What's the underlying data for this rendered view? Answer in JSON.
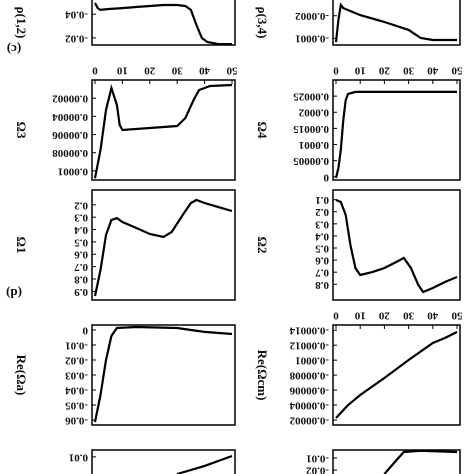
{
  "chart_data": [
    {
      "type": "line",
      "panel_label": "(c)",
      "y_label": "ρ(1,2)",
      "x": [
        0,
        1,
        2,
        5,
        10,
        15,
        20,
        25,
        30,
        33,
        35,
        37,
        39,
        41,
        45,
        50
      ],
      "values": [
        -0.0495,
        -0.0452,
        -0.0436,
        -0.0444,
        -0.0452,
        -0.0461,
        -0.0469,
        -0.0478,
        -0.0478,
        -0.0469,
        -0.0436,
        -0.0309,
        -0.0199,
        -0.0165,
        -0.0148,
        -0.0148
      ],
      "color": "#000000",
      "xlim": [
        0,
        50
      ],
      "ylim": [
        -0.052,
        -0.014
      ],
      "yticks": [
        -0.04,
        -0.02
      ]
    },
    {
      "type": "line",
      "y_label": "ρ(3,4)",
      "x": [
        0,
        1,
        2,
        3,
        10,
        20,
        30,
        35,
        40,
        50
      ],
      "values": [
        -8.3e-05,
        -0.000181,
        -0.000248,
        -0.000234,
        -0.000203,
        -0.000172,
        -0.000137,
        -0.000101,
        -9.2e-05,
        -9.2e-05
      ],
      "color": "#000000",
      "xlim": [
        0,
        50
      ],
      "ylim": [
        -0.00027,
        -7e-05
      ],
      "yticks": [
        -0.0002,
        -0.0001
      ]
    },
    {
      "type": "line",
      "y_label": "Ω3",
      "x": [
        0,
        2,
        4,
        6,
        8,
        9,
        10,
        20,
        30,
        33,
        36,
        38,
        42,
        50
      ],
      "values": [
        0.000108,
        7.7e-05,
        3.3e-05,
        8.8e-06,
        2.75e-05,
        4.95e-05,
        5.5e-05,
        5.28e-05,
        5.06e-05,
        4.18e-05,
        2.2e-05,
        1.1e-05,
        6.6e-06,
        5.5e-06
      ],
      "color": "#000000",
      "xlim": [
        0,
        50
      ],
      "ylim": [
        0,
        0.00011
      ],
      "yticks": [
        2e-05,
        4e-05,
        6e-05,
        8e-05,
        0.0001
      ],
      "xticks": [
        0,
        10,
        20,
        30,
        40,
        50
      ]
    },
    {
      "type": "line",
      "y_label": "Ω4",
      "x": [
        0,
        1,
        2,
        3,
        4,
        5,
        8,
        50
      ],
      "values": [
        -3.8e-06,
        2.72e-05,
        8.3e-05,
        0.000176,
        0.000238,
        0.000257,
        0.000263,
        0.000263
      ],
      "color": "#000000",
      "xlim": [
        0,
        50
      ],
      "ylim": [
        0.0003,
        -1e-05
      ],
      "yticks": [
        0.00025,
        0.0002,
        0.00015,
        0.0001,
        5e-05,
        0
      ],
      "xticks": [
        0,
        10,
        20,
        30,
        40,
        50
      ]
    },
    {
      "type": "line",
      "panel_label": "(d)",
      "y_label": "Ω1",
      "x": [
        0,
        2,
        4,
        6,
        8,
        10,
        15,
        20,
        25,
        28,
        32,
        35,
        37,
        40,
        45,
        50
      ],
      "values": [
        0.938,
        0.727,
        0.444,
        0.323,
        0.307,
        0.339,
        0.387,
        0.436,
        0.46,
        0.42,
        0.282,
        0.185,
        0.161,
        0.185,
        0.218,
        0.25
      ],
      "color": "#000000",
      "xlim": [
        0,
        50
      ],
      "ylim": [
        0.08,
        0.97
      ],
      "yticks": [
        0.2,
        0.3,
        0.4,
        0.5,
        0.6,
        0.7,
        0.8,
        0.9
      ]
    },
    {
      "type": "line",
      "y_label": "Ω2",
      "x": [
        0,
        2,
        4,
        6,
        8,
        10,
        15,
        20,
        25,
        28,
        31,
        34,
        36,
        40,
        45,
        50
      ],
      "values": [
        0.103,
        0.119,
        0.227,
        0.478,
        0.665,
        0.723,
        0.699,
        0.665,
        0.615,
        0.582,
        0.666,
        0.806,
        0.864,
        0.831,
        0.781,
        0.74
      ],
      "color": "#000000",
      "xlim": [
        0,
        50
      ],
      "ylim": [
        0.02,
        0.93
      ],
      "yticks": [
        0.1,
        0.2,
        0.3,
        0.4,
        0.5,
        0.6,
        0.7,
        0.8
      ]
    },
    {
      "type": "line",
      "y_label": "Re(Ωa)",
      "x": [
        0,
        2,
        4,
        6,
        8,
        15,
        30,
        35,
        40,
        50
      ],
      "values": [
        -0.0613,
        -0.0433,
        -0.02,
        -0.004,
        0.0013,
        0.002,
        0.0013,
        0,
        -0.0013,
        -0.0027
      ],
      "color": "#000000",
      "xlim": [
        0,
        50
      ],
      "ylim": [
        0.0033,
        -0.0633
      ],
      "yticks": [
        0,
        -0.01,
        -0.02,
        -0.03,
        -0.04,
        -0.05,
        -0.06
      ]
    },
    {
      "type": "line",
      "y_label": "Re(Ωcm)",
      "x": [
        0,
        5,
        10,
        20,
        30,
        40,
        45,
        50
      ],
      "values": [
        -2.27e-05,
        -4e-05,
        -5.34e-05,
        -7.61e-05,
        -0.0001002,
        -0.0001229,
        -0.0001296,
        -0.0001376
      ],
      "color": "#000000",
      "xlim": [
        0,
        50
      ],
      "ylim": [
        -0.000147,
        -1.33e-05
      ],
      "yticks": [
        -0.00014,
        -0.00012,
        -0.0001,
        -8e-05,
        -6e-05,
        -4e-05,
        -2e-05
      ],
      "xticks": [
        0,
        10,
        20,
        30,
        40,
        50
      ]
    },
    {
      "type": "line",
      "x": [
        30,
        40,
        50
      ],
      "values": [
        0,
        0.0047,
        0.0105
      ],
      "color": "#000000",
      "xlim": [
        0,
        50
      ],
      "ylim": [
        0.014,
        0
      ],
      "yticks": [
        0.01
      ]
    },
    {
      "type": "line",
      "x": [
        20,
        25,
        28,
        35,
        50
      ],
      "values": [
        -0.0233,
        -0.0117,
        -0.005,
        -0.004,
        -0.005
      ],
      "color": "#000000",
      "xlim": [
        0,
        50
      ],
      "ylim": [
        -0.0033,
        -0.0233
      ],
      "yticks": [
        -0.01,
        -0.02
      ]
    }
  ]
}
